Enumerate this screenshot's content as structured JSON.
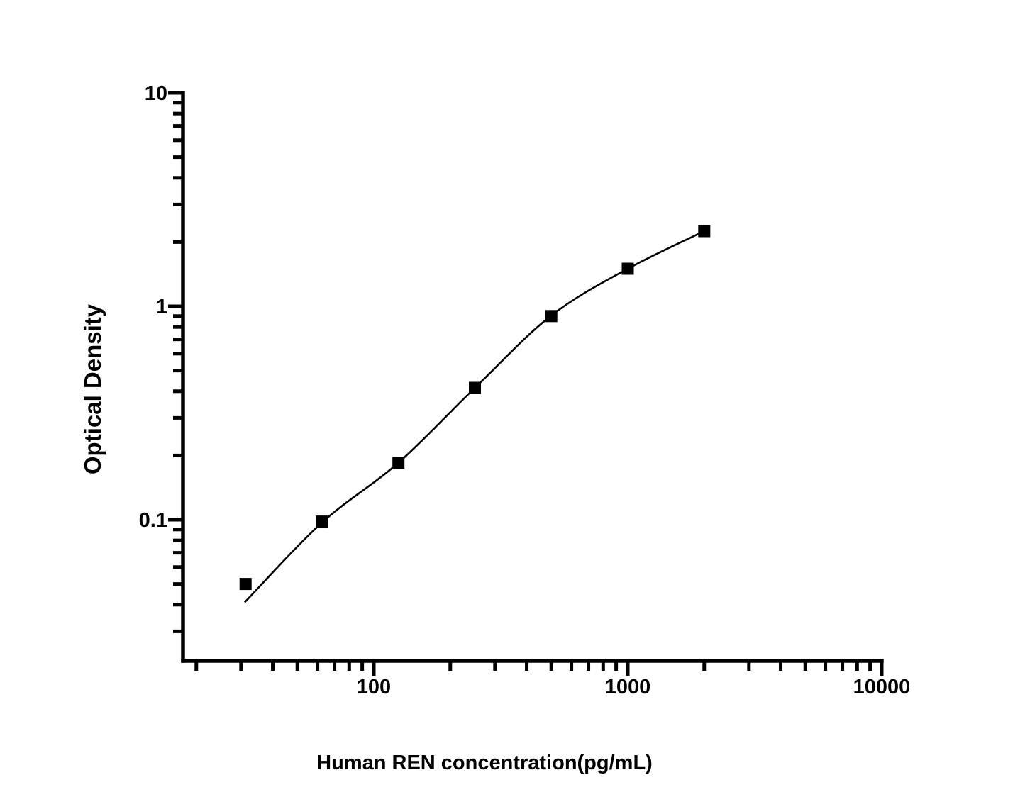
{
  "figure": {
    "background_color": "#ffffff",
    "ink_color": "#000000"
  },
  "chart_data": {
    "type": "scatter",
    "title": "",
    "xlabel": "Human REN concentration(pg/mL)",
    "ylabel": "Optical Density",
    "x_scale": "log",
    "y_scale": "log",
    "xlim": [
      17.8,
      10000
    ],
    "ylim": [
      0.022,
      10
    ],
    "grid": false,
    "legend_position": "none",
    "x_ticks": {
      "major": [
        {
          "value": 100,
          "label": "100"
        },
        {
          "value": 1000,
          "label": "1000"
        },
        {
          "value": 10000,
          "label": "10000"
        }
      ],
      "minor_decades": [
        1,
        2,
        3
      ]
    },
    "y_ticks": {
      "major": [
        {
          "value": 10,
          "label": "10"
        },
        {
          "value": 1,
          "label": "1"
        },
        {
          "value": 0.1,
          "label": "0.1"
        }
      ],
      "minor_decades": [
        -2,
        -1,
        0
      ]
    },
    "series": [
      {
        "name": "standard-points",
        "type": "scatter",
        "marker": "filled-square",
        "color": "#000000",
        "points": [
          {
            "x": 31.25,
            "y": 0.05
          },
          {
            "x": 62.5,
            "y": 0.098
          },
          {
            "x": 125,
            "y": 0.185
          },
          {
            "x": 250,
            "y": 0.415
          },
          {
            "x": 500,
            "y": 0.9
          },
          {
            "x": 1000,
            "y": 1.5
          },
          {
            "x": 2000,
            "y": 2.25
          }
        ]
      },
      {
        "name": "fitted-curve",
        "type": "line",
        "color": "#000000",
        "points": [
          {
            "x": 31,
            "y": 0.041
          },
          {
            "x": 62.5,
            "y": 0.097
          },
          {
            "x": 125,
            "y": 0.185
          },
          {
            "x": 250,
            "y": 0.415
          },
          {
            "x": 500,
            "y": 0.905
          },
          {
            "x": 1000,
            "y": 1.5
          },
          {
            "x": 2000,
            "y": 2.25
          }
        ]
      }
    ]
  }
}
